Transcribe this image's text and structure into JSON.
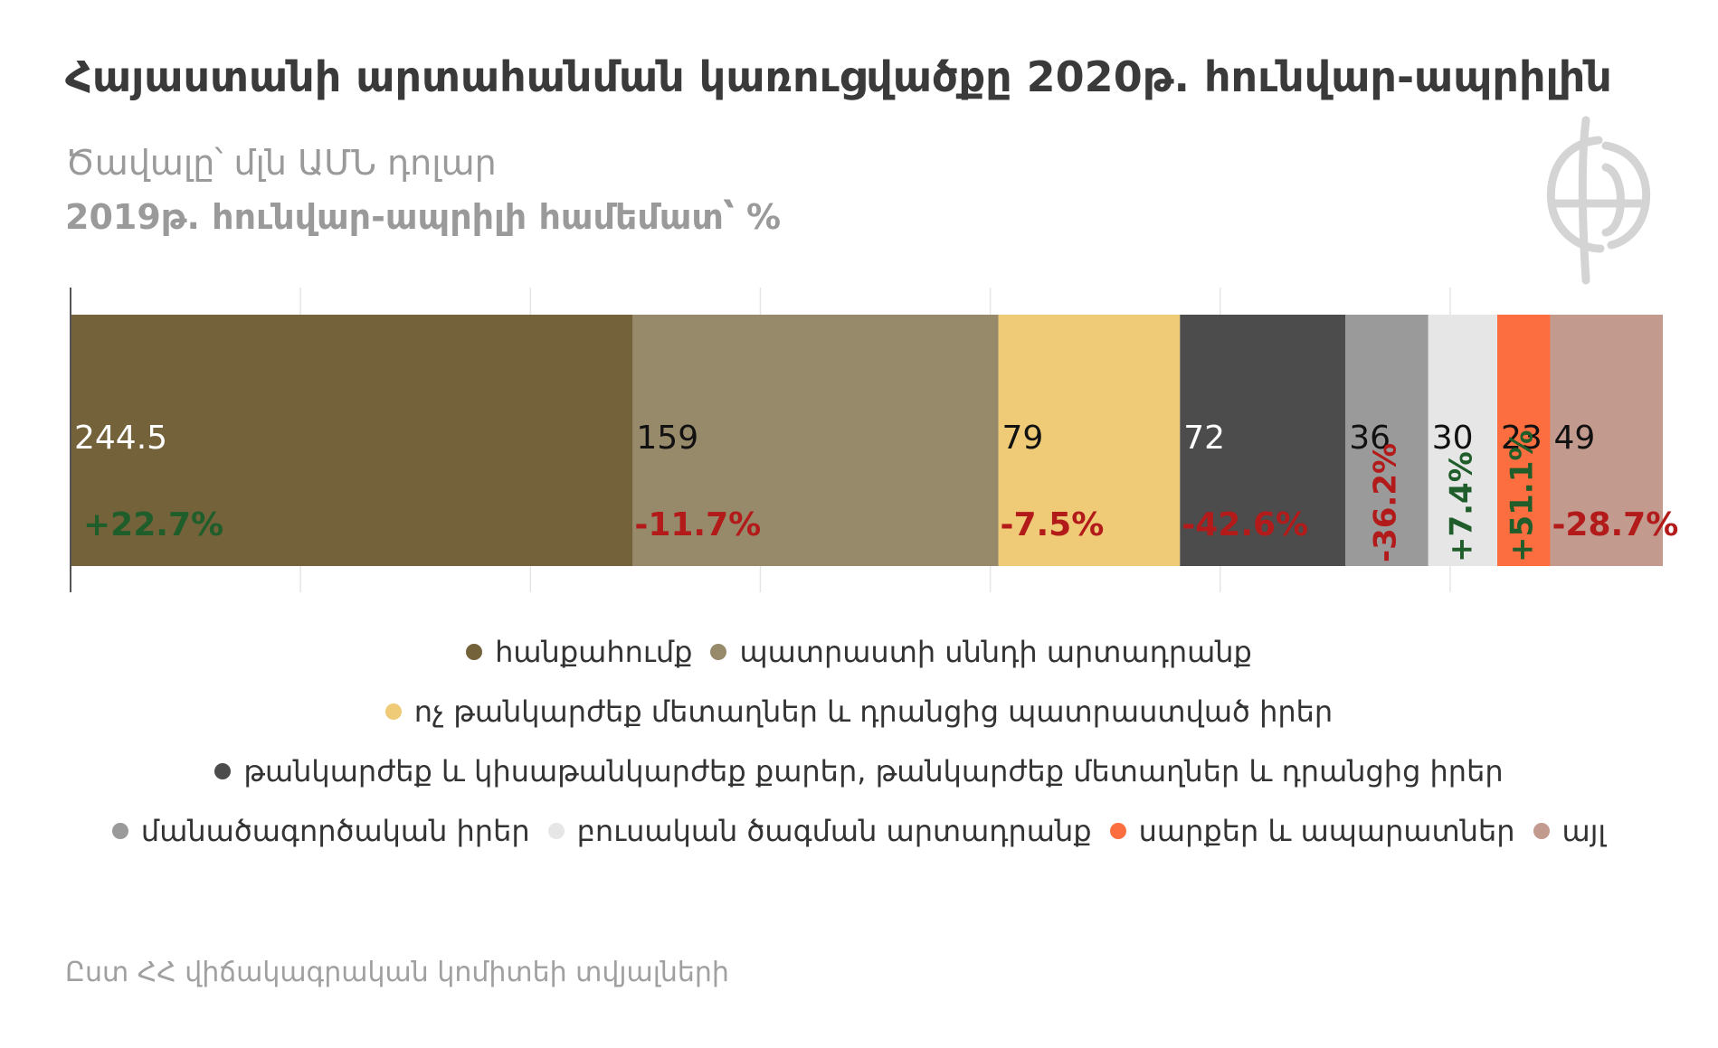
{
  "header": {
    "title": "Հայաստանի արտահանման կառուցվածքը 2020թ. հունվար-ապրիլին",
    "subtitle1": "Ծավալը՝ մլն ԱՄՆ դոլար",
    "subtitle2": "2019թ. հունվար-ապրիլի համեմատ՝ %"
  },
  "logo": {
    "icon": "globe-monogram-logo",
    "color": "#d4d4d4"
  },
  "chart_data": {
    "type": "bar",
    "orientation": "horizontal-stacked",
    "unit": "մլն ԱՄՆ դոլար",
    "grid": true,
    "legend_position": "bottom",
    "series": [
      {
        "name": "հանքահումք",
        "value": 244.5,
        "value_label": "244.5",
        "change": "+22.7%",
        "color": "#74623b",
        "value_color": "#ffffff"
      },
      {
        "name": "պատրաստի սննդի արտադրանք",
        "value": 159,
        "value_label": "159",
        "change": "-11.7%",
        "color": "#978a6b",
        "value_color": "#111111"
      },
      {
        "name": "ոչ թանկարժեք մետաղներ և դրանցից պատրաստված իրեր",
        "value": 79,
        "value_label": "79",
        "change": "-7.5%",
        "color": "#efcb78",
        "value_color": "#111111"
      },
      {
        "name": "թանկարժեք և կիսաթանկարժեք քարեր, թանկարժեք մետաղներ և դրանցից իրեր",
        "value": 72,
        "value_label": "72",
        "change": "-42.6%",
        "color": "#4c4c4c",
        "value_color": "#ffffff"
      },
      {
        "name": "մանածագործական իրեր",
        "value": 36,
        "value_label": "36",
        "change": "-36.2%",
        "color": "#9a9a9a",
        "value_color": "#111111"
      },
      {
        "name": "բուսական ծագման արտադրանք",
        "value": 30,
        "value_label": "30",
        "change": "+7.4%",
        "color": "#e6e6e6",
        "value_color": "#111111"
      },
      {
        "name": "սարքեր և ապարատներ",
        "value": 23,
        "value_label": "23",
        "change": "+51.1%",
        "color": "#fc6d3f",
        "value_color": "#111111"
      },
      {
        "name": "այլ",
        "value": 49,
        "value_label": "49",
        "change": "-28.7%",
        "color": "#c29a8e",
        "value_color": "#111111"
      }
    ],
    "colors": {
      "positive_change": "#1f5e2a",
      "negative_change": "#b31b1b",
      "grid": "#e6e6e6",
      "axis": "#555555"
    }
  },
  "source": "Ըստ ՀՀ վիճակագրական կոմիտեի տվյալների"
}
